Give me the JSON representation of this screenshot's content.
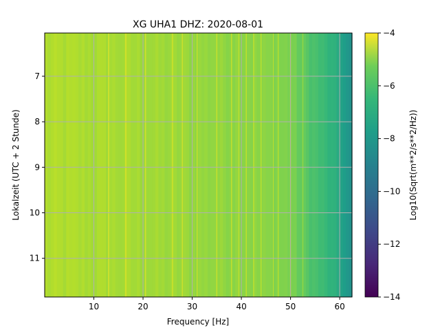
{
  "chart_data": {
    "type": "heatmap",
    "title": "XG UHA1  DHZ: 2020-08-01",
    "xlabel": "Frequency [Hz]",
    "ylabel": "Lokalzeit (UTC + 2 Stunde)",
    "xlim": [
      0,
      62.5
    ],
    "ylim": [
      11.85,
      6.05
    ],
    "y_inverted": true,
    "xticks": [
      10,
      20,
      30,
      40,
      50,
      60
    ],
    "yticks": [
      7,
      8,
      9,
      10,
      11
    ],
    "grid": true,
    "colormap": "viridis",
    "colorbar": {
      "label": "Log10(Sqrt(m**2/s**2/Hz))",
      "min": -14,
      "max": -4,
      "ticks": [
        -4,
        -6,
        -8,
        -10,
        -12,
        -14
      ]
    },
    "value_profile": [
      {
        "freq": 0,
        "value": -5.2
      },
      {
        "freq": 10,
        "value": -5.3
      },
      {
        "freq": 20,
        "value": -5.4
      },
      {
        "freq": 30,
        "value": -5.6
      },
      {
        "freq": 40,
        "value": -5.7
      },
      {
        "freq": 50,
        "value": -6.0
      },
      {
        "freq": 53,
        "value": -6.6
      },
      {
        "freq": 57,
        "value": -7.3
      },
      {
        "freq": 60,
        "value": -8.0
      },
      {
        "freq": 62.5,
        "value": -9.2
      }
    ],
    "spectral_lines_hz": [
      13,
      16.5,
      20.5,
      26,
      28,
      31,
      35,
      38,
      39.5,
      41,
      42.5,
      44,
      46.5,
      47.5,
      50,
      52.5
    ]
  }
}
